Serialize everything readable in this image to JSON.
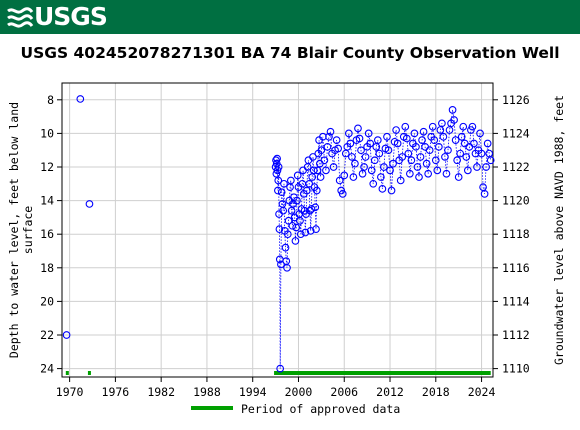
{
  "header": {
    "logo_text": "USGS",
    "logo_color": "#ffffff",
    "background_color": "#006f41"
  },
  "chart_data": {
    "type": "scatter",
    "title": "USGS 402452078271301 BA    74  Blair County Observation Well",
    "ylabel_lines": [
      "Depth to water level, feet below land",
      "surface"
    ],
    "y2label": "Groundwater level above NAVD 1988, feet",
    "xlim": [
      1969,
      2025.5
    ],
    "ylim": [
      24.5,
      7
    ],
    "y_inverted": true,
    "y2lim": [
      1109.5,
      1127
    ],
    "x_ticks": [
      1970,
      1976,
      1982,
      1988,
      1994,
      2000,
      2006,
      2012,
      2018,
      2024
    ],
    "y_ticks": [
      8,
      10,
      12,
      14,
      16,
      18,
      20,
      22,
      24
    ],
    "y2_ticks": [
      1110,
      1112,
      1114,
      1116,
      1118,
      1120,
      1122,
      1124,
      1126
    ],
    "grid": true,
    "marker": "open-circle",
    "marker_color": "#0000ff",
    "line_style": "dotted",
    "series": [
      {
        "points": [
          [
            1969.6,
            22.0
          ],
          [
            1971.4,
            7.95
          ],
          [
            1972.6,
            14.2
          ],
          [
            1997.0,
            12.0
          ],
          [
            1997.05,
            11.6
          ],
          [
            1997.1,
            12.4
          ],
          [
            1997.15,
            11.8
          ],
          [
            1997.2,
            11.5
          ],
          [
            1997.25,
            12.2
          ],
          [
            1997.3,
            13.4
          ],
          [
            1997.35,
            12.8
          ],
          [
            1997.4,
            12.0
          ],
          [
            1997.45,
            14.8
          ],
          [
            1997.5,
            15.7
          ],
          [
            1997.55,
            17.5
          ],
          [
            1997.6,
            24.0
          ],
          [
            1997.7,
            17.8
          ],
          [
            1997.8,
            13.5
          ],
          [
            1997.9,
            14.2
          ],
          [
            1998.0,
            14.6
          ],
          [
            1998.1,
            13.0
          ],
          [
            1998.2,
            15.8
          ],
          [
            1998.3,
            16.8
          ],
          [
            1998.4,
            17.6
          ],
          [
            1998.5,
            18.0
          ],
          [
            1998.6,
            16.0
          ],
          [
            1998.7,
            15.2
          ],
          [
            1998.8,
            14.0
          ],
          [
            1998.9,
            13.2
          ],
          [
            1999.0,
            12.8
          ],
          [
            1999.1,
            14.6
          ],
          [
            1999.2,
            15.5
          ],
          [
            1999.3,
            14.2
          ],
          [
            1999.4,
            13.8
          ],
          [
            1999.5,
            15.0
          ],
          [
            1999.6,
            16.4
          ],
          [
            1999.7,
            15.6
          ],
          [
            1999.8,
            14.0
          ],
          [
            1999.9,
            12.5
          ],
          [
            2000.0,
            13.2
          ],
          [
            2000.1,
            14.8
          ],
          [
            2000.2,
            15.2
          ],
          [
            2000.3,
            16.0
          ],
          [
            2000.4,
            14.5
          ],
          [
            2000.5,
            13.0
          ],
          [
            2000.6,
            12.2
          ],
          [
            2000.7,
            13.6
          ],
          [
            2000.8,
            14.6
          ],
          [
            2000.9,
            15.9
          ],
          [
            2001.0,
            14.8
          ],
          [
            2001.1,
            13.4
          ],
          [
            2001.2,
            12.0
          ],
          [
            2001.3,
            11.6
          ],
          [
            2001.4,
            13.0
          ],
          [
            2001.5,
            14.6
          ],
          [
            2001.6,
            15.8
          ],
          [
            2001.7,
            14.5
          ],
          [
            2001.8,
            12.6
          ],
          [
            2001.9,
            11.4
          ],
          [
            2002.0,
            12.2
          ],
          [
            2002.1,
            13.2
          ],
          [
            2002.2,
            14.4
          ],
          [
            2002.3,
            15.7
          ],
          [
            2002.4,
            13.4
          ],
          [
            2002.5,
            12.2
          ],
          [
            2002.6,
            11.2
          ],
          [
            2002.7,
            10.4
          ],
          [
            2002.8,
            11.8
          ],
          [
            2002.9,
            12.6
          ],
          [
            2003.0,
            11.0
          ],
          [
            2003.2,
            10.2
          ],
          [
            2003.4,
            11.6
          ],
          [
            2003.6,
            12.2
          ],
          [
            2003.8,
            10.8
          ],
          [
            2004.0,
            10.2
          ],
          [
            2004.2,
            9.9
          ],
          [
            2004.4,
            11.2
          ],
          [
            2004.6,
            12.0
          ],
          [
            2004.8,
            11.0
          ],
          [
            2005.0,
            10.4
          ],
          [
            2005.2,
            10.9
          ],
          [
            2005.4,
            12.8
          ],
          [
            2005.6,
            13.4
          ],
          [
            2005.8,
            13.6
          ],
          [
            2006.0,
            12.5
          ],
          [
            2006.2,
            11.2
          ],
          [
            2006.4,
            10.8
          ],
          [
            2006.6,
            10.0
          ],
          [
            2006.8,
            10.6
          ],
          [
            2007.0,
            11.4
          ],
          [
            2007.2,
            12.6
          ],
          [
            2007.4,
            11.8
          ],
          [
            2007.6,
            10.4
          ],
          [
            2007.8,
            9.7
          ],
          [
            2008.0,
            10.3
          ],
          [
            2008.2,
            11.0
          ],
          [
            2008.4,
            12.4
          ],
          [
            2008.6,
            12.0
          ],
          [
            2008.8,
            11.4
          ],
          [
            2009.0,
            10.8
          ],
          [
            2009.2,
            10.0
          ],
          [
            2009.4,
            10.6
          ],
          [
            2009.6,
            12.2
          ],
          [
            2009.8,
            13.0
          ],
          [
            2010.0,
            11.6
          ],
          [
            2010.2,
            10.8
          ],
          [
            2010.4,
            10.4
          ],
          [
            2010.6,
            11.2
          ],
          [
            2010.8,
            12.6
          ],
          [
            2011.0,
            13.3
          ],
          [
            2011.2,
            12.0
          ],
          [
            2011.4,
            10.9
          ],
          [
            2011.6,
            10.2
          ],
          [
            2011.8,
            11.0
          ],
          [
            2012.0,
            12.2
          ],
          [
            2012.2,
            13.4
          ],
          [
            2012.4,
            11.8
          ],
          [
            2012.6,
            10.5
          ],
          [
            2012.8,
            9.8
          ],
          [
            2013.0,
            10.6
          ],
          [
            2013.2,
            11.6
          ],
          [
            2013.4,
            12.8
          ],
          [
            2013.6,
            11.4
          ],
          [
            2013.8,
            10.2
          ],
          [
            2014.0,
            9.6
          ],
          [
            2014.2,
            10.3
          ],
          [
            2014.4,
            11.2
          ],
          [
            2014.6,
            12.4
          ],
          [
            2014.8,
            11.6
          ],
          [
            2015.0,
            10.6
          ],
          [
            2015.2,
            10.0
          ],
          [
            2015.4,
            10.8
          ],
          [
            2015.6,
            12.0
          ],
          [
            2015.8,
            12.6
          ],
          [
            2016.0,
            11.4
          ],
          [
            2016.2,
            10.4
          ],
          [
            2016.4,
            9.9
          ],
          [
            2016.6,
            10.8
          ],
          [
            2016.8,
            11.8
          ],
          [
            2017.0,
            12.4
          ],
          [
            2017.2,
            11.0
          ],
          [
            2017.4,
            10.2
          ],
          [
            2017.6,
            9.6
          ],
          [
            2017.8,
            10.4
          ],
          [
            2018.0,
            11.6
          ],
          [
            2018.2,
            12.2
          ],
          [
            2018.4,
            10.8
          ],
          [
            2018.6,
            9.8
          ],
          [
            2018.8,
            9.4
          ],
          [
            2019.0,
            10.2
          ],
          [
            2019.2,
            11.4
          ],
          [
            2019.4,
            12.4
          ],
          [
            2019.6,
            11.0
          ],
          [
            2019.8,
            9.8
          ],
          [
            2020.0,
            9.4
          ],
          [
            2020.2,
            8.6
          ],
          [
            2020.4,
            9.2
          ],
          [
            2020.6,
            10.4
          ],
          [
            2020.8,
            11.6
          ],
          [
            2021.0,
            12.6
          ],
          [
            2021.2,
            11.2
          ],
          [
            2021.4,
            10.2
          ],
          [
            2021.6,
            9.6
          ],
          [
            2021.8,
            10.6
          ],
          [
            2022.0,
            11.4
          ],
          [
            2022.2,
            12.2
          ],
          [
            2022.4,
            10.8
          ],
          [
            2022.6,
            9.8
          ],
          [
            2022.8,
            9.6
          ],
          [
            2023.0,
            10.6
          ],
          [
            2023.2,
            11.2
          ],
          [
            2023.4,
            12.0
          ],
          [
            2023.6,
            11.0
          ],
          [
            2023.8,
            10.0
          ],
          [
            2024.0,
            11.2
          ],
          [
            2024.2,
            13.2
          ],
          [
            2024.4,
            13.6
          ],
          [
            2024.6,
            12.0
          ],
          [
            2024.8,
            10.6
          ],
          [
            2025.0,
            11.2
          ],
          [
            2025.2,
            11.6
          ]
        ]
      }
    ],
    "approved_periods": [
      [
        1969.5,
        1969.8
      ],
      [
        1972.4,
        1972.7
      ],
      [
        1996.8,
        2025.2
      ]
    ],
    "approved_color": "#00a000",
    "legend_label": "Period of approved data",
    "legend_position": "bottom-center"
  }
}
